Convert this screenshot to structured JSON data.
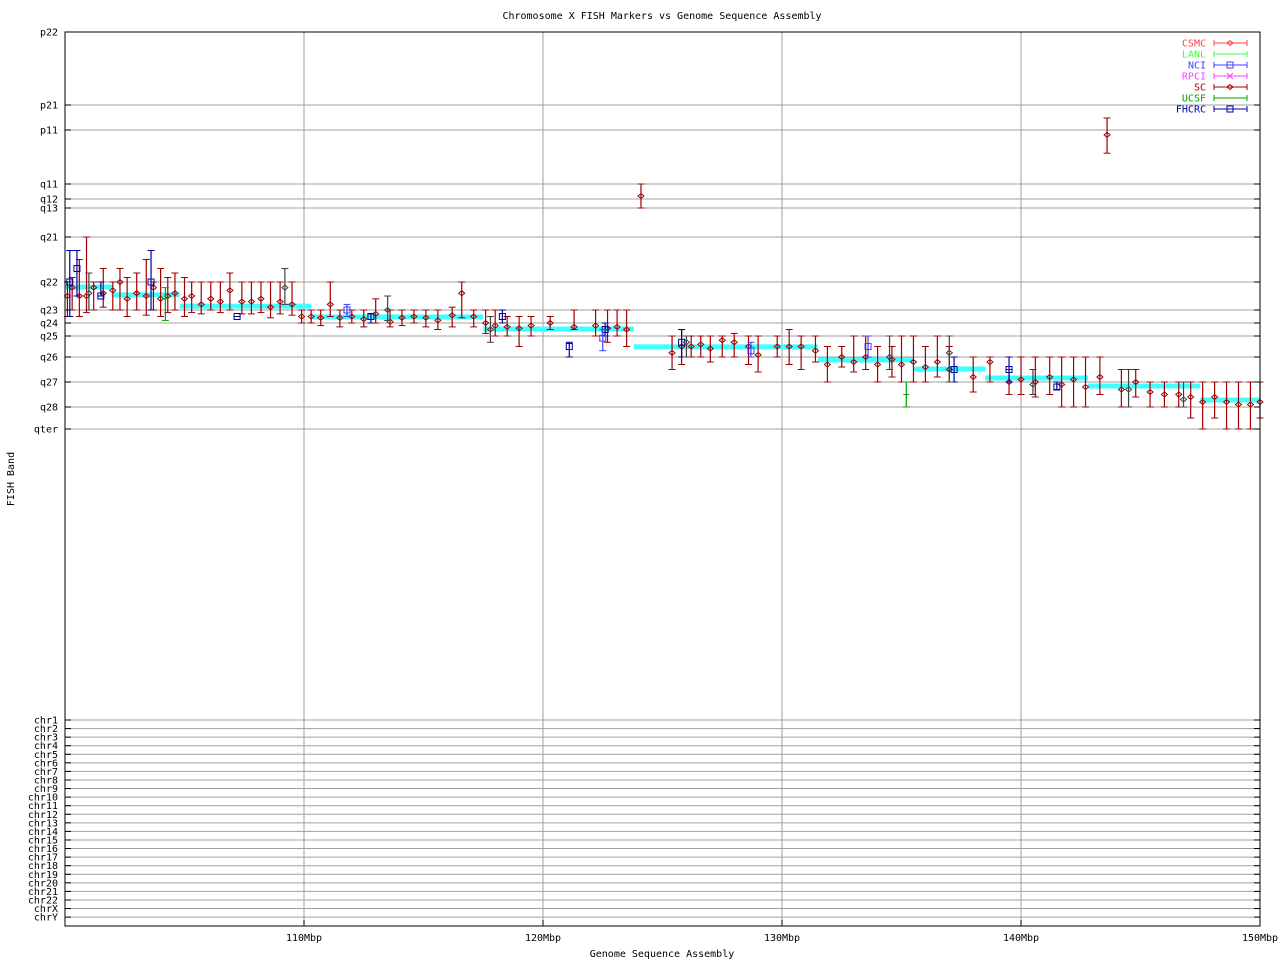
{
  "chart_data": {
    "type": "scatter",
    "title": "Chromosome X FISH Markers vs Genome Sequence Assembly",
    "xlabel": "Genome Sequence Assembly",
    "ylabel": "FISH Band",
    "xlim": [
      100,
      150
    ],
    "x_ticks": [
      {
        "value": 110,
        "label": "110Mbp"
      },
      {
        "value": 120,
        "label": "120Mbp"
      },
      {
        "value": 130,
        "label": "130Mbp"
      },
      {
        "value": 140,
        "label": "140Mbp"
      },
      {
        "value": 150,
        "label": "150Mbp"
      }
    ],
    "y_ticks": [
      "p22",
      "p21",
      "p11",
      "q11",
      "q12",
      "q13",
      "q21",
      "q22",
      "q23",
      "q24",
      "q25",
      "q26",
      "q27",
      "q28",
      "qter",
      "chr1",
      "chr2",
      "chr3",
      "chr4",
      "chr5",
      "chr6",
      "chr7",
      "chr8",
      "chr9",
      "chr10",
      "chr11",
      "chr12",
      "chr13",
      "chr14",
      "chr15",
      "chr16",
      "chr17",
      "chr18",
      "chr19",
      "chr20",
      "chr21",
      "chr22",
      "chrX",
      "chrY"
    ],
    "y_value_note": "y values are band positions on the ordinal band axis: whole numbers fall on the listed band ticks (0 = p22 ... 14 = qter), fractions lie between adjacent bands",
    "grid": true,
    "legend_placement": "top-right",
    "legend": [
      {
        "name": "CSMC",
        "color": "#ff4040",
        "marker": "diamond"
      },
      {
        "name": "LANL",
        "color": "#40ff40",
        "marker": "tick"
      },
      {
        "name": "NCI",
        "color": "#4040ff",
        "marker": "square"
      },
      {
        "name": "RPCI",
        "color": "#ff40ff",
        "marker": "cross"
      },
      {
        "name": "SC",
        "color": "#a00000",
        "marker": "diamond"
      },
      {
        "name": "UCSF",
        "color": "#00a000",
        "marker": "tick"
      },
      {
        "name": "FHCRC",
        "color": "#0000a0",
        "marker": "square"
      }
    ],
    "assembly_line": {
      "color": "#40ffff",
      "segments": [
        [
          100,
          102,
          7.18
        ],
        [
          102,
          104.8,
          7.46
        ],
        [
          104.8,
          110.3,
          7.86
        ],
        [
          110.3,
          117.5,
          8.54
        ],
        [
          117.5,
          123.8,
          9.46
        ],
        [
          123.8,
          131.5,
          10.52
        ],
        [
          131.5,
          135.5,
          11.12
        ],
        [
          135.5,
          138.5,
          11.48
        ],
        [
          138.5,
          142.8,
          11.84
        ],
        [
          142.8,
          147.5,
          12.16
        ],
        [
          147.5,
          150,
          12.72
        ]
      ]
    },
    "series": [
      {
        "name": "SC",
        "color": "#a00000",
        "marker": "diamond",
        "points_format": "[x_Mbp, band, band_low, band_high]",
        "points": [
          [
            100.1,
            7.5,
            7.0,
            8.5
          ],
          [
            100.3,
            7.2,
            6.9,
            8.0
          ],
          [
            100.6,
            7.5,
            6.5,
            8.5
          ],
          [
            100.9,
            7.5,
            6.0,
            8.2
          ],
          [
            101.2,
            7.2,
            7.0,
            8.0
          ],
          [
            101.6,
            7.4,
            6.7,
            7.9
          ],
          [
            102.0,
            7.3,
            7.0,
            8.0
          ],
          [
            102.3,
            7.0,
            6.7,
            8.0
          ],
          [
            102.6,
            7.6,
            6.9,
            8.5
          ],
          [
            103.0,
            7.4,
            6.8,
            8.0
          ],
          [
            103.4,
            7.5,
            6.5,
            8.4
          ],
          [
            103.7,
            7.2,
            7.0,
            8.0
          ],
          [
            104.0,
            7.6,
            6.7,
            8.5
          ],
          [
            104.3,
            7.5,
            6.9,
            8.2
          ],
          [
            104.6,
            7.4,
            6.8,
            8.0
          ],
          [
            105.0,
            7.6,
            6.9,
            8.5
          ],
          [
            105.3,
            7.5,
            7.0,
            8.2
          ],
          [
            105.7,
            7.8,
            7.0,
            8.3
          ],
          [
            106.1,
            7.6,
            7.0,
            8.0
          ],
          [
            106.5,
            7.7,
            7.0,
            8.2
          ],
          [
            106.9,
            7.3,
            6.8,
            8.0
          ],
          [
            107.4,
            7.7,
            7.0,
            8.3
          ],
          [
            107.8,
            7.7,
            7.0,
            8.3
          ],
          [
            108.2,
            7.6,
            7.0,
            8.2
          ],
          [
            108.6,
            7.9,
            7.0,
            8.6
          ],
          [
            109.0,
            7.7,
            7.0,
            8.3
          ],
          [
            109.5,
            7.8,
            7.0,
            8.4
          ],
          [
            109.9,
            8.5,
            8.0,
            9.0
          ],
          [
            110.3,
            8.5,
            8.0,
            9.0
          ],
          [
            110.7,
            8.6,
            8.0,
            9.2
          ],
          [
            111.1,
            7.8,
            7.0,
            8.5
          ],
          [
            111.5,
            8.6,
            8.0,
            9.3
          ],
          [
            112.0,
            8.5,
            8.0,
            9.0
          ],
          [
            112.5,
            8.7,
            8.0,
            9.3
          ],
          [
            113.0,
            8.3,
            7.6,
            9.0
          ],
          [
            113.6,
            8.9,
            8.0,
            9.3
          ],
          [
            114.1,
            8.6,
            8.0,
            9.2
          ],
          [
            114.6,
            8.5,
            8.0,
            9.0
          ],
          [
            115.1,
            8.6,
            8.0,
            9.3
          ],
          [
            115.6,
            8.8,
            8.0,
            9.5
          ],
          [
            116.2,
            8.4,
            7.9,
            9.3
          ],
          [
            116.6,
            7.4,
            7.0,
            8.6
          ],
          [
            117.1,
            8.5,
            8.0,
            9.3
          ],
          [
            117.6,
            9.0,
            8.0,
            9.8
          ],
          [
            118.0,
            9.2,
            8.0,
            10.0
          ],
          [
            118.5,
            9.3,
            8.5,
            10.0
          ],
          [
            119.0,
            9.4,
            8.5,
            10.5
          ],
          [
            119.5,
            9.2,
            8.5,
            10.0
          ],
          [
            120.3,
            9.0,
            8.5,
            9.5
          ],
          [
            121.3,
            9.3,
            8.0,
            9.5
          ],
          [
            122.2,
            9.2,
            8.0,
            10.0
          ],
          [
            122.7,
            9.4,
            8.0,
            10.3
          ],
          [
            123.1,
            9.3,
            8.0,
            10.0
          ],
          [
            123.5,
            9.5,
            8.0,
            10.5
          ],
          [
            124.1,
            3.8,
            3.0,
            5.0
          ],
          [
            125.4,
            10.8,
            10.0,
            11.5
          ],
          [
            125.8,
            10.5,
            9.5,
            11.3
          ],
          [
            126.2,
            10.5,
            10.0,
            11.0
          ],
          [
            126.6,
            10.4,
            10.0,
            11.0
          ],
          [
            127.0,
            10.6,
            10.0,
            11.2
          ],
          [
            127.5,
            10.2,
            10.0,
            11.0
          ],
          [
            128.0,
            10.3,
            9.8,
            11.0
          ],
          [
            128.6,
            10.5,
            10.0,
            11.3
          ],
          [
            129.0,
            10.9,
            10.0,
            11.6
          ],
          [
            129.8,
            10.5,
            10.0,
            11.0
          ],
          [
            130.3,
            10.5,
            9.5,
            11.3
          ],
          [
            130.8,
            10.5,
            10.0,
            11.5
          ],
          [
            131.4,
            10.7,
            10.0,
            11.2
          ],
          [
            131.9,
            11.3,
            10.5,
            12.0
          ],
          [
            132.5,
            11.0,
            10.5,
            11.4
          ],
          [
            133.0,
            11.2,
            10.0,
            11.6
          ],
          [
            133.5,
            11.0,
            10.0,
            11.5
          ],
          [
            134.0,
            11.3,
            10.5,
            12.0
          ],
          [
            134.6,
            11.1,
            10.5,
            11.8
          ],
          [
            135.0,
            11.3,
            10.0,
            12.0
          ],
          [
            135.5,
            11.2,
            10.0,
            12.0
          ],
          [
            136.0,
            11.4,
            10.5,
            12.0
          ],
          [
            136.5,
            11.2,
            10.0,
            11.8
          ],
          [
            137.0,
            11.5,
            10.5,
            12.0
          ],
          [
            138.0,
            11.8,
            11.0,
            12.4
          ],
          [
            138.7,
            11.2,
            11.0,
            12.0
          ],
          [
            139.5,
            12.0,
            11.5,
            12.5
          ],
          [
            140.0,
            11.9,
            11.0,
            12.5
          ],
          [
            140.6,
            12.0,
            11.0,
            12.6
          ],
          [
            141.2,
            11.8,
            11.0,
            12.5
          ],
          [
            141.7,
            12.1,
            11.0,
            13.0
          ],
          [
            142.2,
            11.9,
            11.0,
            13.0
          ],
          [
            142.7,
            12.2,
            11.0,
            13.0
          ],
          [
            143.3,
            11.8,
            11.0,
            12.5
          ],
          [
            143.6,
            2.09,
            1.52,
            2.43
          ],
          [
            144.2,
            12.3,
            11.5,
            13.0
          ],
          [
            144.8,
            12.0,
            11.5,
            12.6
          ],
          [
            145.4,
            12.4,
            12.0,
            13.0
          ],
          [
            146.0,
            12.5,
            12.0,
            13.0
          ],
          [
            146.6,
            12.5,
            12.0,
            13.0
          ],
          [
            147.1,
            12.6,
            12.0,
            13.5
          ],
          [
            147.6,
            12.8,
            12.0,
            14.0
          ],
          [
            148.1,
            12.6,
            12.0,
            13.5
          ],
          [
            148.6,
            12.8,
            12.0,
            14.0
          ],
          [
            149.1,
            12.9,
            12.0,
            14.0
          ],
          [
            149.6,
            12.9,
            12.0,
            14.0
          ],
          [
            150.0,
            12.8,
            12.0,
            13.5
          ]
        ]
      },
      {
        "name": "FHCRC",
        "color": "#0000a0",
        "marker": "square",
        "points": [
          [
            100.2,
            7.0,
            6.3,
            8.5
          ],
          [
            100.5,
            6.7,
            6.3,
            7.5
          ],
          [
            101.5,
            7.5,
            7.0,
            7.5
          ],
          [
            103.6,
            7.0,
            6.3,
            8.0
          ],
          [
            107.2,
            8.5,
            8.5,
            8.5
          ],
          [
            112.8,
            8.5,
            8.3,
            9.0
          ],
          [
            118.3,
            8.5,
            8.0,
            9.0
          ],
          [
            121.1,
            10.5,
            10.3,
            11.0
          ],
          [
            122.6,
            9.5,
            9.0,
            10.0
          ],
          [
            125.8,
            10.3,
            9.5,
            11.0
          ],
          [
            137.2,
            11.5,
            11.0,
            12.0
          ],
          [
            139.5,
            11.5,
            11.0,
            12.0
          ],
          [
            141.5,
            12.2,
            12.0,
            12.3
          ]
        ]
      },
      {
        "name": "NCI",
        "color": "#4040ff",
        "marker": "square",
        "points": [
          [
            111.8,
            8.0,
            7.8,
            8.5
          ],
          [
            122.5,
            10.1,
            9.5,
            10.7
          ],
          [
            128.7,
            10.7,
            10.3,
            11.0
          ],
          [
            133.6,
            10.5,
            10.0,
            11.0
          ]
        ]
      },
      {
        "name": "UCSF",
        "color": "#00a000",
        "marker": "tick",
        "points": [
          [
            104.2,
            7.6,
            7.2,
            8.8
          ],
          [
            135.2,
            12.5,
            12.0,
            13.0
          ]
        ]
      },
      {
        "color": "#404040",
        "marker": "diamond",
        "points": [
          [
            101.0,
            7.4,
            6.8,
            8.0
          ],
          [
            109.2,
            7.2,
            6.7,
            7.8
          ],
          [
            113.5,
            8.0,
            7.5,
            8.8
          ],
          [
            117.8,
            9.5,
            8.5,
            10.3
          ],
          [
            126.0,
            10.3,
            10.0,
            11.0
          ],
          [
            134.5,
            11.0,
            10.0,
            11.5
          ],
          [
            137.0,
            10.8,
            10.0,
            12.0
          ],
          [
            140.5,
            12.1,
            11.5,
            12.5
          ],
          [
            144.5,
            12.3,
            11.5,
            13.0
          ],
          [
            146.8,
            12.7,
            12.0,
            13.0
          ]
        ]
      }
    ]
  }
}
